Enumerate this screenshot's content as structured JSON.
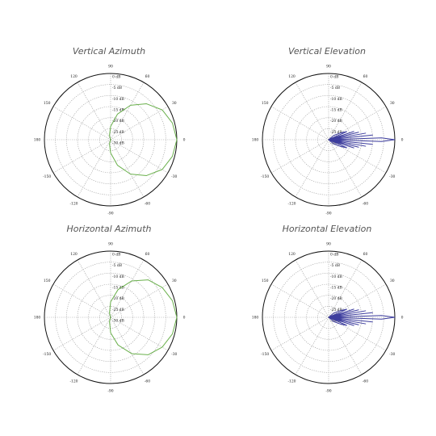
{
  "colors": {
    "azimuth_trace": "#6ab04c",
    "elevation_trace": "#3d3d9e",
    "grid": "#9a9a9a",
    "outer_ring": "#111111"
  },
  "chart_data": [
    {
      "type": "polar-line",
      "title": "Vertical Azimuth",
      "angle_labels": [
        "90",
        "60",
        "30",
        "0",
        "-30",
        "-60",
        "-90",
        "-120",
        "-150",
        "180",
        "150",
        "120"
      ],
      "ring_labels": [
        "0 dB",
        "-5 dB",
        "-10 dB",
        "-15 dB",
        "-20 dB",
        "-25 dB",
        "-30 dB"
      ],
      "r_range_db": [
        -30,
        0
      ],
      "series": [
        {
          "color_key": "azimuth_trace",
          "theta_deg": [
            0,
            15,
            30,
            45,
            60,
            75,
            90,
            105,
            120,
            135,
            150,
            180,
            -150,
            -135,
            -120,
            -105,
            -90,
            -75,
            -60,
            -45,
            -30,
            -15
          ],
          "gain_db": [
            0,
            -1,
            -3,
            -7,
            -12,
            -18,
            -24,
            -28,
            -30,
            -30,
            -30,
            -30,
            -30,
            -30,
            -30,
            -28,
            -24,
            -18,
            -12,
            -7,
            -3,
            -1
          ]
        }
      ]
    },
    {
      "type": "polar-line",
      "title": "Vertical Elevation",
      "angle_labels": [
        "90",
        "60",
        "30",
        "0",
        "-30",
        "-60",
        "-90",
        "-120",
        "-150",
        "180",
        "150",
        "120"
      ],
      "ring_labels": [
        "0 dB",
        "-5 dB",
        "-10 dB",
        "-15 dB",
        "-20 dB",
        "-25 dB",
        "-30 dB"
      ],
      "r_range_db": [
        -30,
        0
      ],
      "series": [
        {
          "color_key": "elevation_trace",
          "theta_deg": [
            0,
            2,
            4,
            6,
            8,
            10,
            12,
            14,
            16,
            18,
            20,
            24,
            30,
            40,
            60,
            90,
            120,
            150,
            180,
            -150,
            -120,
            -90,
            -60,
            -40,
            -30,
            -24,
            -20,
            -18,
            -16,
            -14,
            -12,
            -10,
            -8,
            -6,
            -4,
            -2
          ],
          "gain_db": [
            0,
            -6,
            -30,
            -10,
            -30,
            -13,
            -30,
            -16,
            -30,
            -18,
            -30,
            -21,
            -24,
            -27,
            -30,
            -30,
            -30,
            -30,
            -30,
            -30,
            -30,
            -30,
            -30,
            -27,
            -24,
            -21,
            -30,
            -18,
            -30,
            -16,
            -30,
            -13,
            -30,
            -10,
            -30,
            -6
          ]
        }
      ]
    },
    {
      "type": "polar-line",
      "title": "Horizontal Azimuth",
      "angle_labels": [
        "90",
        "60",
        "30",
        "0",
        "-30",
        "-60",
        "-90",
        "-120",
        "-150",
        "180",
        "150",
        "120"
      ],
      "ring_labels": [
        "0 dB",
        "-5 dB",
        "-10 dB",
        "-15 dB",
        "-20 dB",
        "-25 dB",
        "-30 dB"
      ],
      "r_range_db": [
        -30,
        0
      ],
      "series": [
        {
          "color_key": "azimuth_trace",
          "theta_deg": [
            0,
            15,
            30,
            45,
            60,
            75,
            90,
            105,
            120,
            135,
            150,
            180,
            -150,
            -135,
            -120,
            -105,
            -90,
            -75,
            -60,
            -45,
            -30,
            -15
          ],
          "gain_db": [
            0,
            -1,
            -3,
            -6,
            -11,
            -17,
            -23,
            -28,
            -30,
            -30,
            -30,
            -30,
            -30,
            -30,
            -30,
            -28,
            -23,
            -17,
            -11,
            -6,
            -3,
            -1
          ]
        }
      ]
    },
    {
      "type": "polar-line",
      "title": "Horizontal Elevation",
      "angle_labels": [
        "90",
        "60",
        "30",
        "0",
        "-30",
        "-60",
        "-90",
        "-120",
        "-150",
        "180",
        "150",
        "120"
      ],
      "ring_labels": [
        "0 dB",
        "-5 dB",
        "-10 dB",
        "-15 dB",
        "-20 dB",
        "-25 dB",
        "-30 dB"
      ],
      "r_range_db": [
        -30,
        0
      ],
      "series": [
        {
          "color_key": "elevation_trace",
          "theta_deg": [
            0,
            2,
            4,
            6,
            8,
            10,
            12,
            14,
            16,
            18,
            20,
            24,
            30,
            40,
            60,
            90,
            120,
            150,
            180,
            -150,
            -120,
            -90,
            -60,
            -40,
            -30,
            -24,
            -20,
            -18,
            -16,
            -14,
            -12,
            -10,
            -8,
            -6,
            -4,
            -2
          ],
          "gain_db": [
            0,
            -6,
            -30,
            -10,
            -30,
            -13,
            -30,
            -16,
            -30,
            -18,
            -30,
            -21,
            -24,
            -27,
            -30,
            -30,
            -30,
            -30,
            -30,
            -30,
            -30,
            -30,
            -30,
            -27,
            -24,
            -21,
            -30,
            -18,
            -30,
            -16,
            -30,
            -13,
            -30,
            -10,
            -30,
            -6
          ]
        }
      ]
    }
  ]
}
